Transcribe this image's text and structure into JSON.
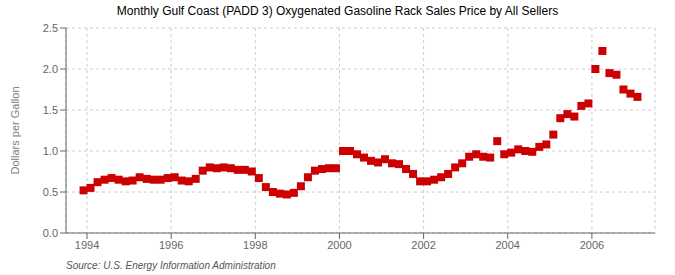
{
  "chart_data": {
    "type": "scatter",
    "title": "Monthly Gulf Coast (PADD 3) Oxygenated Gasoline Rack Sales Price by All Sellers",
    "ylabel": "Dollars per Gallon",
    "source": "Source: U.S. Energy Information Administration",
    "color": "#CC0000",
    "marker": "square",
    "grid": true,
    "xlim": [
      1993.5,
      2007.5
    ],
    "ylim": [
      0,
      2.5
    ],
    "xticks": [
      1994,
      1996,
      1998,
      2000,
      2002,
      2004,
      2006
    ],
    "yticks": [
      {
        "value": 0,
        "label": "0.0"
      },
      0.5,
      {
        "value": 1,
        "label": "1.0"
      },
      1.5,
      {
        "value": 2,
        "label": "2.0"
      },
      2.5
    ],
    "x": [
      1993.917,
      1994.083,
      1994.25,
      1994.417,
      1994.583,
      1994.75,
      1994.917,
      1995.083,
      1995.25,
      1995.417,
      1995.583,
      1995.75,
      1995.917,
      1996.083,
      1996.25,
      1996.417,
      1996.583,
      1996.75,
      1996.917,
      1997.083,
      1997.25,
      1997.417,
      1997.583,
      1997.75,
      1997.917,
      1998.083,
      1998.25,
      1998.417,
      1998.583,
      1998.75,
      1998.917,
      1999.083,
      1999.25,
      1999.417,
      1999.583,
      1999.75,
      1999.917,
      2000.083,
      2000.25,
      2000.417,
      2000.583,
      2000.75,
      2000.917,
      2001.083,
      2001.25,
      2001.417,
      2001.583,
      2001.75,
      2001.917,
      2002.083,
      2002.25,
      2002.417,
      2002.583,
      2002.75,
      2002.917,
      2003.083,
      2003.25,
      2003.417,
      2003.583,
      2003.75,
      2003.917,
      2004.083,
      2004.25,
      2004.417,
      2004.583,
      2004.75,
      2004.917,
      2005.083,
      2005.25,
      2005.417,
      2005.583,
      2005.75,
      2005.917,
      2006.083,
      2006.25,
      2006.417,
      2006.583,
      2006.75,
      2006.917,
      2007.083
    ],
    "values": [
      0.52,
      0.55,
      0.62,
      0.65,
      0.67,
      0.65,
      0.63,
      0.64,
      0.68,
      0.66,
      0.65,
      0.65,
      0.67,
      0.68,
      0.64,
      0.63,
      0.66,
      0.76,
      0.8,
      0.79,
      0.8,
      0.79,
      0.77,
      0.77,
      0.75,
      0.67,
      0.56,
      0.5,
      0.48,
      0.47,
      0.49,
      0.57,
      0.68,
      0.76,
      0.78,
      0.79,
      0.79,
      1.0,
      1.0,
      0.96,
      0.92,
      0.88,
      0.86,
      0.9,
      0.85,
      0.84,
      0.78,
      0.72,
      0.63,
      0.63,
      0.65,
      0.68,
      0.72,
      0.8,
      0.85,
      0.93,
      0.96,
      0.93,
      0.92,
      1.12,
      0.96,
      0.98,
      1.02,
      1.0,
      0.99,
      1.05,
      1.08,
      1.2,
      1.4,
      1.45,
      1.42,
      1.55,
      1.58,
      2.0,
      2.22,
      1.95,
      1.93,
      1.75,
      1.7,
      1.66
    ]
  }
}
